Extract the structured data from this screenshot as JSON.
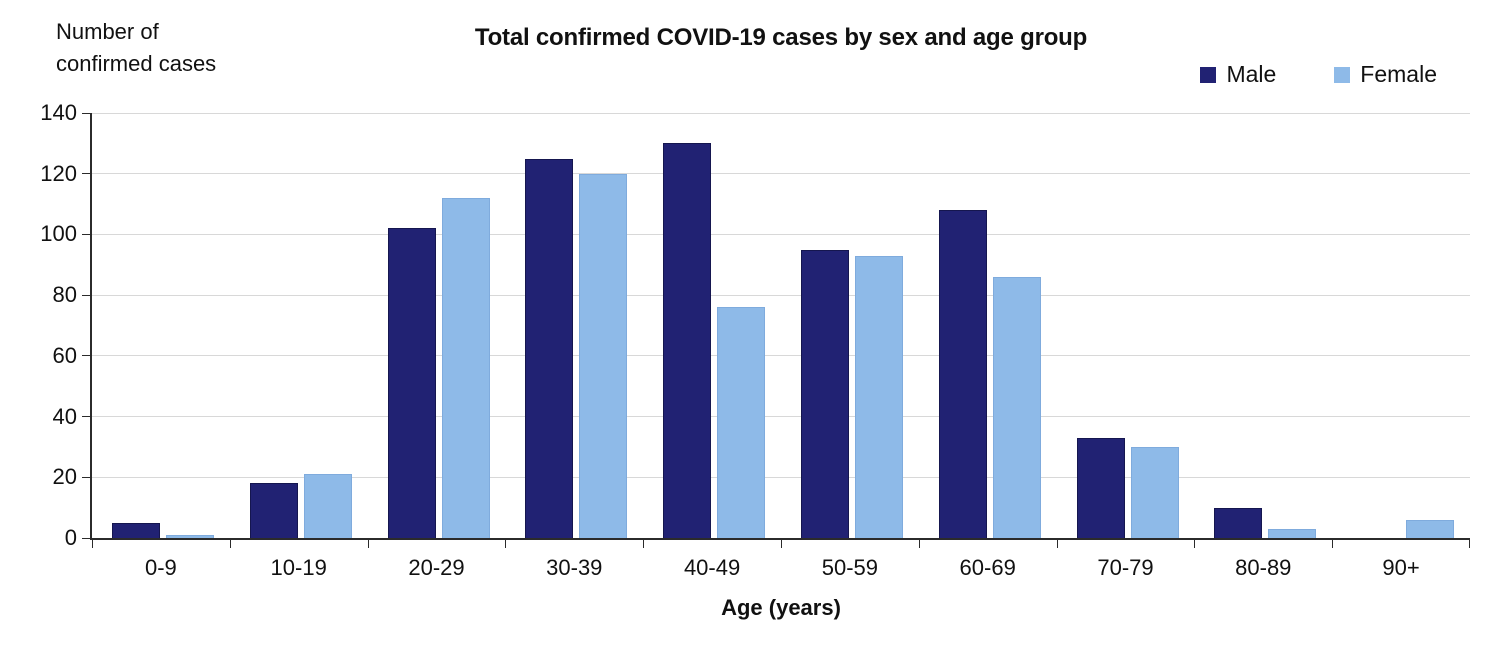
{
  "labels": {
    "y_axis_note": "Number of\nconfirmed cases"
  },
  "chart_data": {
    "type": "bar",
    "title": "Total confirmed COVID-19 cases by sex and age group",
    "xlabel": "Age (years)",
    "ylabel": "Number of confirmed cases",
    "categories": [
      "0-9",
      "10-19",
      "20-29",
      "30-39",
      "40-49",
      "50-59",
      "60-69",
      "70-79",
      "80-89",
      "90+"
    ],
    "series": [
      {
        "name": "Male",
        "color": "#212273",
        "border_color": "#15164f",
        "values": [
          5,
          18,
          102,
          125,
          130,
          95,
          108,
          33,
          10,
          0
        ]
      },
      {
        "name": "Female",
        "color": "#8ebae8",
        "border_color": "#7fabdd",
        "values": [
          1,
          21,
          112,
          120,
          76,
          93,
          86,
          30,
          3,
          6
        ]
      }
    ],
    "ylim": [
      0,
      140
    ],
    "yticks": [
      0,
      20,
      40,
      60,
      80,
      100,
      120,
      140
    ],
    "grid": true,
    "legend_position": "top-right",
    "gridline_color": "#d8d8d8",
    "axis_color": "#2b2b2b"
  }
}
